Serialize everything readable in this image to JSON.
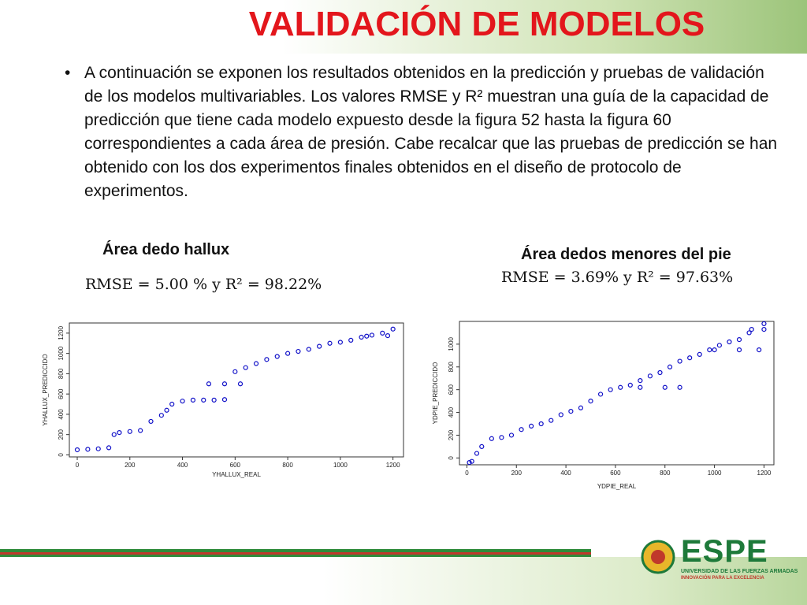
{
  "header": {
    "title": "VALIDACIÓN DE MODELOS"
  },
  "body": {
    "bullet": "•",
    "text": "A continuación se exponen los resultados obtenidos en la predicción y pruebas de validación de los modelos multivariables. Los valores RMSE y R² muestran una guía de la capacidad de predicción que tiene cada modelo expuesto desde la figura 52 hasta la figura 60 correspondientes a cada área de presión. Cabe recalcar que las pruebas de predicción se han obtenido con los dos experimentos finales obtenidos en el diseño de protocolo de experimentos."
  },
  "panels": [
    {
      "caption": "Área dedo hallux",
      "formula": "RMSE = 5.00 % y R² = 98.22%"
    },
    {
      "caption": "Área dedos menores del pie",
      "formula": "RMSE = 3.69% y R² = 97.63%"
    }
  ],
  "chart_data": [
    {
      "type": "scatter",
      "x_label": "YHALLUX_REAL",
      "y_label": "YHALLUX_PREDICCIDO",
      "color": "#1010c8",
      "x": [
        0,
        40,
        80,
        120,
        140,
        160,
        200,
        240,
        280,
        320,
        340,
        360,
        400,
        440,
        480,
        500,
        520,
        560,
        560,
        600,
        620,
        640,
        680,
        720,
        760,
        800,
        840,
        880,
        920,
        960,
        1000,
        1040,
        1080,
        1100,
        1120,
        1160,
        1180,
        1200
      ],
      "values": [
        50,
        55,
        60,
        70,
        200,
        220,
        230,
        240,
        330,
        390,
        440,
        500,
        530,
        540,
        540,
        700,
        540,
        545,
        700,
        820,
        700,
        860,
        900,
        940,
        970,
        1000,
        1020,
        1040,
        1070,
        1100,
        1110,
        1130,
        1160,
        1170,
        1180,
        1200,
        1175,
        1240
      ],
      "xlim": [
        -30,
        1240
      ],
      "ylim": [
        -20,
        1300
      ],
      "xticks": [
        0,
        200,
        400,
        600,
        800,
        1000,
        1200
      ],
      "yticks": [
        0,
        200,
        400,
        600,
        800,
        1000,
        1200
      ]
    },
    {
      "type": "scatter",
      "x_label": "YDPIE_REAL",
      "y_label": "YDPIE_PREDICCIDO",
      "color": "#1010c8",
      "x": [
        10,
        20,
        40,
        60,
        100,
        140,
        180,
        220,
        260,
        300,
        340,
        380,
        420,
        460,
        500,
        540,
        580,
        620,
        660,
        700,
        700,
        740,
        780,
        800,
        820,
        860,
        860,
        900,
        940,
        980,
        1000,
        1020,
        1060,
        1100,
        1100,
        1140,
        1150,
        1180,
        1200,
        1200
      ],
      "values": [
        -40,
        -30,
        40,
        100,
        170,
        180,
        200,
        250,
        280,
        300,
        330,
        380,
        410,
        440,
        500,
        560,
        600,
        620,
        640,
        680,
        620,
        720,
        750,
        620,
        800,
        850,
        620,
        880,
        910,
        950,
        950,
        990,
        1020,
        1040,
        950,
        1100,
        1130,
        950,
        1180,
        1130
      ],
      "xlim": [
        -30,
        1240
      ],
      "ylim": [
        -60,
        1200
      ],
      "xticks": [
        0,
        200,
        400,
        600,
        800,
        1000,
        1200
      ],
      "yticks": [
        0,
        200,
        400,
        600,
        800,
        1000
      ]
    }
  ]
}
